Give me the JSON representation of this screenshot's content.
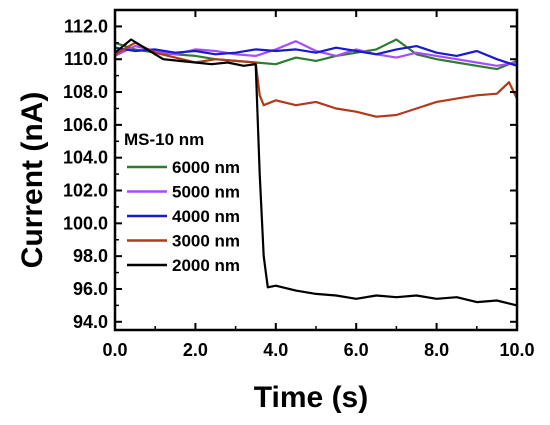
{
  "chart_data": {
    "type": "line",
    "title": "",
    "xlabel": "Time (s)",
    "ylabel": "Current (nA)",
    "xlim": [
      0,
      10
    ],
    "ylim": [
      93.5,
      113
    ],
    "x_ticks": [
      0,
      2,
      4,
      6,
      8,
      10
    ],
    "x_tick_labels": [
      "0.0",
      "2.0",
      "4.0",
      "6.0",
      "8.0",
      "10.0"
    ],
    "y_ticks": [
      94,
      96,
      98,
      100,
      102,
      104,
      106,
      108,
      110,
      112
    ],
    "y_tick_labels": [
      "94.0",
      "96.0",
      "98.0",
      "100.0",
      "102.0",
      "104.0",
      "106.0",
      "108.0",
      "110.0",
      "112.0"
    ],
    "grid": false,
    "legend": {
      "title": "MS-10 nm",
      "position": "center-left"
    },
    "series": [
      {
        "name": "6000 nm",
        "color": "#2e7d2e",
        "x": [
          0,
          0.5,
          1.0,
          1.5,
          2.0,
          2.5,
          3.0,
          3.5,
          4.0,
          4.5,
          5.0,
          5.5,
          6.0,
          6.5,
          7.0,
          7.5,
          8.0,
          8.5,
          9.0,
          9.5,
          10.0
        ],
        "y": [
          111.0,
          110.6,
          110.4,
          110.3,
          110.2,
          110.0,
          109.9,
          109.8,
          109.7,
          110.1,
          109.9,
          110.2,
          110.4,
          110.6,
          111.2,
          110.3,
          110.0,
          109.8,
          109.6,
          109.4,
          109.9
        ]
      },
      {
        "name": "5000 nm",
        "color": "#a64dff",
        "x": [
          0,
          0.5,
          1.0,
          1.5,
          2.0,
          2.5,
          3.0,
          3.5,
          4.0,
          4.5,
          5.0,
          5.5,
          6.0,
          6.5,
          7.0,
          7.5,
          8.0,
          8.5,
          9.0,
          9.5,
          10.0
        ],
        "y": [
          110.2,
          110.8,
          110.5,
          110.3,
          110.6,
          110.5,
          110.3,
          110.2,
          110.6,
          111.1,
          110.5,
          110.2,
          110.6,
          110.3,
          110.1,
          110.4,
          110.2,
          110.0,
          109.8,
          109.6,
          109.8
        ]
      },
      {
        "name": "4000 nm",
        "color": "#1a1acc",
        "x": [
          0,
          0.5,
          1.0,
          1.5,
          2.0,
          2.5,
          3.0,
          3.5,
          4.0,
          4.5,
          5.0,
          5.5,
          6.0,
          6.5,
          7.0,
          7.5,
          8.0,
          8.5,
          9.0,
          9.5,
          10.0
        ],
        "y": [
          110.7,
          110.5,
          110.6,
          110.4,
          110.5,
          110.3,
          110.4,
          110.6,
          110.5,
          110.6,
          110.4,
          110.7,
          110.5,
          110.3,
          110.6,
          110.8,
          110.4,
          110.2,
          110.5,
          110.0,
          109.6
        ]
      },
      {
        "name": "3000 nm",
        "color": "#b03a1a",
        "x": [
          0,
          0.5,
          1.0,
          1.5,
          2.0,
          2.5,
          3.0,
          3.5,
          3.6,
          3.7,
          4.0,
          4.5,
          5.0,
          5.5,
          6.0,
          6.5,
          7.0,
          7.5,
          8.0,
          8.5,
          9.0,
          9.5,
          9.8,
          10.0
        ],
        "y": [
          110.3,
          111.0,
          110.4,
          110.1,
          109.8,
          110.0,
          109.9,
          109.8,
          107.8,
          107.2,
          107.5,
          107.2,
          107.4,
          107.0,
          106.8,
          106.5,
          106.6,
          107.0,
          107.4,
          107.6,
          107.8,
          107.9,
          108.6,
          107.6
        ]
      },
      {
        "name": "2000 nm",
        "color": "#000000",
        "x": [
          0,
          0.4,
          0.8,
          1.2,
          1.6,
          2.0,
          2.4,
          2.8,
          3.2,
          3.5,
          3.6,
          3.7,
          3.8,
          4.0,
          4.5,
          5.0,
          5.5,
          6.0,
          6.5,
          7.0,
          7.5,
          8.0,
          8.5,
          9.0,
          9.5,
          10.0
        ],
        "y": [
          110.4,
          111.2,
          110.6,
          110.0,
          109.9,
          109.8,
          109.7,
          109.8,
          109.6,
          109.7,
          103.0,
          98.0,
          96.1,
          96.2,
          95.9,
          95.7,
          95.6,
          95.4,
          95.6,
          95.5,
          95.6,
          95.4,
          95.5,
          95.2,
          95.3,
          95.0
        ]
      }
    ]
  }
}
